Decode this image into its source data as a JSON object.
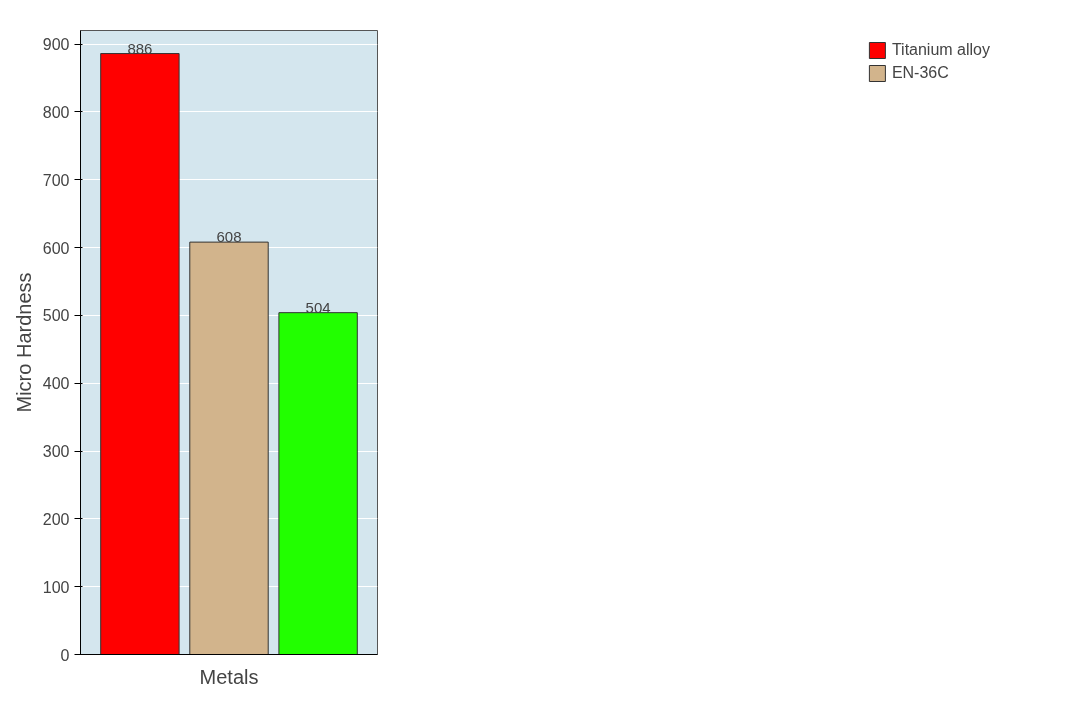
{
  "chart_data": {
    "type": "bar",
    "xlabel": "Metals",
    "ylabel": "Micro Hardness",
    "categories": [
      null
    ],
    "series": [
      {
        "name": "Titanium alloy",
        "color": "#ff0000",
        "values": [
          886
        ]
      },
      {
        "name": "EN-36C",
        "color": "#d2b48c",
        "values": [
          608
        ]
      },
      {
        "color": "#22ff00",
        "values": [
          504
        ]
      }
    ],
    "ylim": [
      0,
      920
    ],
    "yticks": [
      0,
      100,
      200,
      300,
      400,
      500,
      600,
      700,
      800,
      900
    ],
    "grid": "y",
    "legend": "right",
    "data_labels": true
  }
}
